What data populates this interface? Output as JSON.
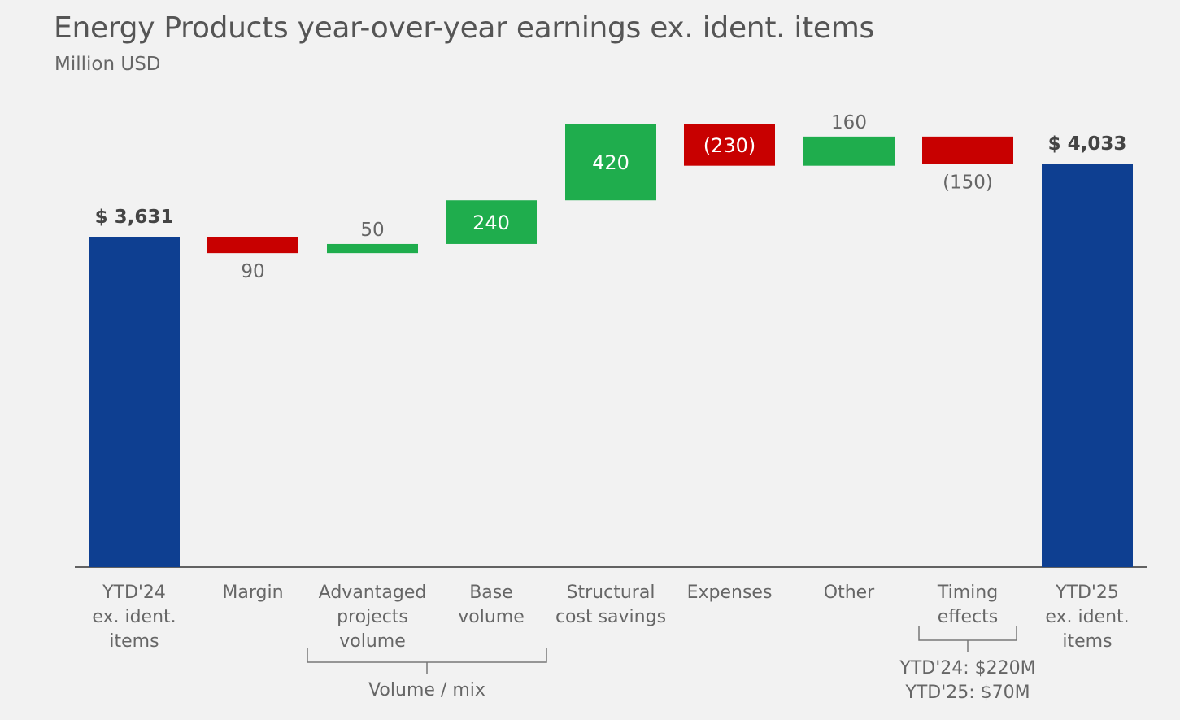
{
  "title": "Energy Products year-over-year earnings ex. ident. items",
  "subtitle": "Million USD",
  "chart_data": {
    "type": "waterfall",
    "title": "Energy Products year-over-year earnings ex. ident. items",
    "ylabel": "Million USD",
    "categories": [
      "YTD'24\nex. ident.\nitems",
      "Margin",
      "Advantaged\nprojects\nvolume",
      "Base\nvolume",
      "Structural\ncost savings",
      "Expenses",
      "Other",
      "Timing\neffects",
      "YTD'25\nex. ident.\nitems"
    ],
    "bars": [
      {
        "kind": "total",
        "value": 3631,
        "label": "$ 3,631",
        "color": "#0e3f91"
      },
      {
        "kind": "decrease",
        "value": -90,
        "label": "90",
        "color": "#c80000"
      },
      {
        "kind": "increase",
        "value": 50,
        "label": "50",
        "color": "#1fad4d"
      },
      {
        "kind": "increase",
        "value": 240,
        "label": "240",
        "color": "#1fad4d"
      },
      {
        "kind": "increase",
        "value": 420,
        "label": "420",
        "color": "#1fad4d"
      },
      {
        "kind": "decrease",
        "value": -230,
        "label": "(230)",
        "color": "#c80000"
      },
      {
        "kind": "increase",
        "value": 160,
        "label": "160",
        "color": "#1fad4d"
      },
      {
        "kind": "decrease",
        "value": -150,
        "label": "(150)",
        "color": "#c80000"
      },
      {
        "kind": "total",
        "value": 4033,
        "label": "$ 4,033",
        "color": "#0e3f91"
      }
    ],
    "groups": [
      {
        "label": "Volume / mix",
        "from": 2,
        "to": 3
      },
      {
        "label": "YTD'24: $220M\nYTD'25: $70M",
        "from": 7,
        "to": 7
      }
    ]
  }
}
